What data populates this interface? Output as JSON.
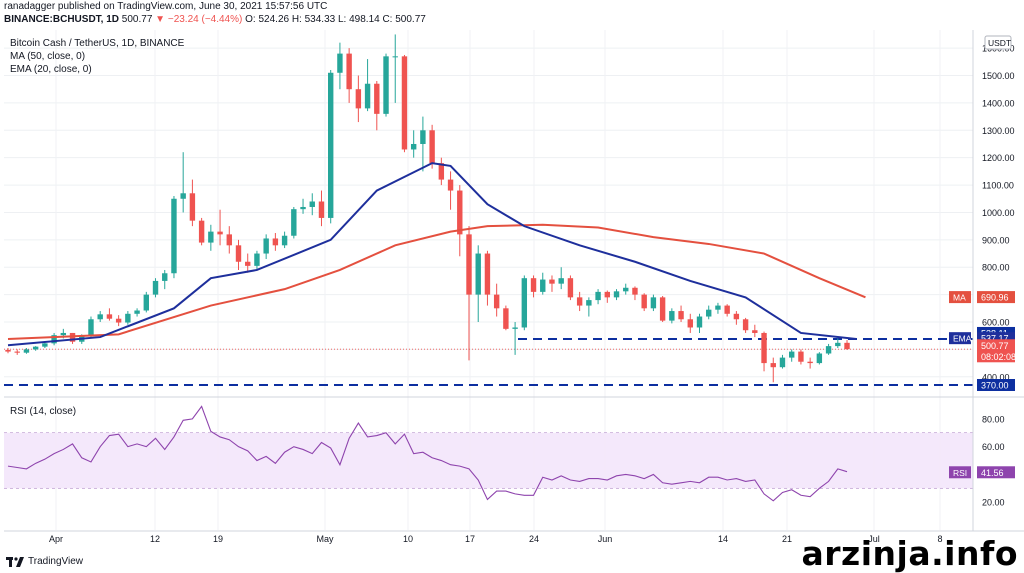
{
  "header": {
    "publisher_line": "ranadagger published on TradingView.com, June 30, 2021 15:57:56 UTC",
    "symbol": "BINANCE:BCHUSDT, 1D",
    "last": "500.77",
    "change": "▼ −23.24 (−4.44%)",
    "ohlc": "O: 524.26 H: 534.33 L: 498.14 C: 500.77"
  },
  "legend": {
    "title": "Bitcoin Cash / TetherUS, 1D, BINANCE",
    "ma": "MA (50, close, 0)",
    "ema": "EMA (20, close, 0)",
    "rsi": "RSI (14, close)"
  },
  "footer": {
    "logo": "TradingView",
    "watermark": "arzinja.info"
  },
  "colors": {
    "up": "#26a69a",
    "down": "#ef5350",
    "ema": "#1e2f9c",
    "ma": "#e4503f",
    "rsi": "#8e44ad",
    "support": "#0d2fa0"
  },
  "chart_data": [
    {
      "type": "candlestick",
      "currency_badge": "USDT",
      "x_ticks": [
        "Apr",
        "12",
        "19",
        "May",
        "10",
        "17",
        "24",
        "Jun",
        "14",
        "21",
        "Jul",
        "8"
      ],
      "y_ticks": [
        400,
        500,
        600,
        700,
        800,
        900,
        1000,
        1100,
        1200,
        1300,
        1400,
        1500,
        1600,
        1700
      ],
      "ylim": [
        370,
        1710
      ],
      "candles": [
        [
          498,
          505,
          486,
          492
        ],
        [
          492,
          500,
          480,
          488
        ],
        [
          488,
          505,
          484,
          500
        ],
        [
          500,
          512,
          495,
          510
        ],
        [
          510,
          530,
          505,
          522
        ],
        [
          522,
          560,
          515,
          552
        ],
        [
          552,
          575,
          540,
          560
        ],
        [
          560,
          560,
          520,
          528
        ],
        [
          528,
          555,
          520,
          548
        ],
        [
          548,
          620,
          540,
          610
        ],
        [
          610,
          640,
          600,
          628
        ],
        [
          628,
          650,
          605,
          612
        ],
        [
          612,
          625,
          585,
          598
        ],
        [
          598,
          640,
          590,
          630
        ],
        [
          630,
          650,
          620,
          642
        ],
        [
          642,
          710,
          635,
          700
        ],
        [
          700,
          760,
          690,
          750
        ],
        [
          750,
          790,
          720,
          778
        ],
        [
          778,
          1060,
          760,
          1050
        ],
        [
          1050,
          1220,
          1000,
          1070
        ],
        [
          1070,
          1120,
          950,
          970
        ],
        [
          970,
          980,
          880,
          890
        ],
        [
          890,
          955,
          860,
          930
        ],
        [
          930,
          1010,
          880,
          920
        ],
        [
          920,
          950,
          850,
          880
        ],
        [
          880,
          900,
          790,
          820
        ],
        [
          820,
          850,
          780,
          805
        ],
        [
          805,
          860,
          790,
          850
        ],
        [
          850,
          920,
          830,
          905
        ],
        [
          905,
          925,
          860,
          880
        ],
        [
          880,
          930,
          870,
          915
        ],
        [
          915,
          1020,
          905,
          1012
        ],
        [
          1012,
          1050,
          995,
          1020
        ],
        [
          1020,
          1070,
          990,
          1040
        ],
        [
          1040,
          1080,
          950,
          980
        ],
        [
          980,
          1520,
          960,
          1510
        ],
        [
          1510,
          1620,
          1450,
          1580
        ],
        [
          1580,
          1600,
          1400,
          1450
        ],
        [
          1450,
          1500,
          1330,
          1380
        ],
        [
          1380,
          1560,
          1370,
          1470
        ],
        [
          1470,
          1480,
          1300,
          1360
        ],
        [
          1360,
          1580,
          1350,
          1570
        ],
        [
          1570,
          1650,
          1400,
          1570
        ],
        [
          1570,
          1575,
          1220,
          1230
        ],
        [
          1230,
          1300,
          1200,
          1250
        ],
        [
          1250,
          1350,
          1150,
          1300
        ],
        [
          1300,
          1320,
          1160,
          1180
        ],
        [
          1180,
          1200,
          1100,
          1120
        ],
        [
          1120,
          1150,
          1010,
          1080
        ],
        [
          1080,
          1100,
          840,
          920
        ],
        [
          920,
          950,
          460,
          700
        ],
        [
          700,
          880,
          600,
          850
        ],
        [
          850,
          860,
          660,
          700
        ],
        [
          700,
          740,
          620,
          650
        ],
        [
          650,
          660,
          570,
          575
        ],
        [
          575,
          600,
          480,
          580
        ],
        [
          580,
          770,
          570,
          760
        ],
        [
          760,
          770,
          690,
          710
        ],
        [
          710,
          780,
          700,
          755
        ],
        [
          755,
          770,
          710,
          740
        ],
        [
          740,
          800,
          720,
          760
        ],
        [
          760,
          770,
          680,
          690
        ],
        [
          690,
          710,
          640,
          660
        ],
        [
          660,
          690,
          620,
          680
        ],
        [
          680,
          720,
          665,
          710
        ],
        [
          710,
          715,
          670,
          690
        ],
        [
          690,
          720,
          680,
          712
        ],
        [
          712,
          740,
          700,
          725
        ],
        [
          725,
          730,
          680,
          700
        ],
        [
          700,
          705,
          640,
          650
        ],
        [
          650,
          700,
          640,
          690
        ],
        [
          690,
          695,
          600,
          605
        ],
        [
          605,
          650,
          595,
          640
        ],
        [
          640,
          660,
          600,
          610
        ],
        [
          610,
          630,
          560,
          580
        ],
        [
          580,
          630,
          560,
          620
        ],
        [
          620,
          660,
          610,
          645
        ],
        [
          645,
          670,
          630,
          660
        ],
        [
          660,
          665,
          620,
          630
        ],
        [
          630,
          640,
          590,
          610
        ],
        [
          610,
          615,
          560,
          570
        ],
        [
          570,
          590,
          545,
          560
        ],
        [
          560,
          565,
          420,
          450
        ],
        [
          450,
          470,
          380,
          435
        ],
        [
          435,
          480,
          430,
          470
        ],
        [
          470,
          500,
          455,
          492
        ],
        [
          492,
          500,
          445,
          455
        ],
        [
          455,
          470,
          430,
          450
        ],
        [
          450,
          490,
          445,
          485
        ],
        [
          485,
          520,
          480,
          512
        ],
        [
          512,
          540,
          505,
          524
        ],
        [
          524,
          534,
          498,
          501
        ]
      ],
      "ema20": [
        [
          0,
          515
        ],
        [
          10,
          545
        ],
        [
          18,
          650
        ],
        [
          22,
          760
        ],
        [
          27,
          790
        ],
        [
          35,
          900
        ],
        [
          40,
          1080
        ],
        [
          46,
          1180
        ],
        [
          48,
          1170
        ],
        [
          52,
          1030
        ],
        [
          56,
          950
        ],
        [
          62,
          880
        ],
        [
          68,
          820
        ],
        [
          74,
          750
        ],
        [
          80,
          690
        ],
        [
          86,
          560
        ],
        [
          92,
          538
        ]
      ],
      "ma50": [
        [
          0,
          538
        ],
        [
          12,
          555
        ],
        [
          22,
          660
        ],
        [
          30,
          720
        ],
        [
          36,
          790
        ],
        [
          42,
          880
        ],
        [
          48,
          930
        ],
        [
          52,
          950
        ],
        [
          58,
          955
        ],
        [
          64,
          945
        ],
        [
          70,
          910
        ],
        [
          76,
          885
        ],
        [
          82,
          850
        ],
        [
          88,
          760
        ],
        [
          93,
          690
        ]
      ],
      "price_labels": [
        {
          "label": "MA",
          "value": "690.96"
        },
        {
          "label": "",
          "value": "538.11"
        },
        {
          "label": "EMA",
          "value": "537.17"
        },
        {
          "label": "",
          "value": "500.77"
        },
        {
          "label": "",
          "value": "08:02:08"
        },
        {
          "label": "",
          "value": "370.00"
        }
      ],
      "support_levels": [
        538,
        370
      ]
    },
    {
      "type": "line",
      "name": "RSI (14, close)",
      "y_ticks": [
        20,
        40,
        60,
        80
      ],
      "ylim": [
        0,
        90
      ],
      "band": [
        30,
        70
      ],
      "last_label": {
        "label": "RSI",
        "value": "41.56"
      },
      "values": [
        46,
        45,
        44,
        48,
        51,
        55,
        58,
        62,
        52,
        49,
        60,
        68,
        69,
        60,
        62,
        60,
        66,
        58,
        67,
        79,
        80,
        89,
        71,
        67,
        65,
        60,
        57,
        50,
        53,
        48,
        56,
        60,
        58,
        55,
        63,
        59,
        47,
        66,
        77,
        67,
        68,
        70,
        62,
        69,
        55,
        56,
        52,
        50,
        47,
        46,
        44,
        36,
        22,
        28,
        28,
        26,
        25,
        25,
        38,
        36,
        39,
        36,
        35,
        37,
        37,
        36,
        39,
        40,
        39,
        37,
        40,
        34,
        33,
        34,
        35,
        34,
        38,
        38,
        36,
        37,
        35,
        36,
        26,
        21,
        27,
        29,
        25,
        24,
        30,
        35,
        44,
        42
      ]
    }
  ]
}
